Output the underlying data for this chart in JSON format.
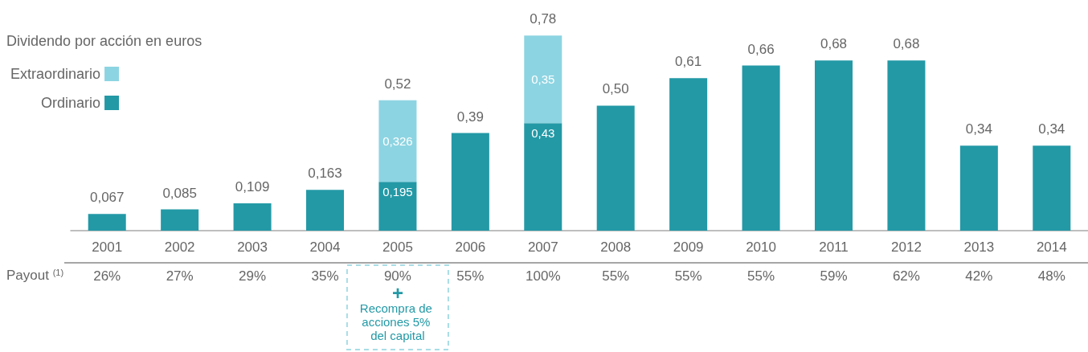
{
  "chart_data": {
    "type": "bar",
    "stacked": true,
    "legend": "top left",
    "legend_title": "Dividendo por acción en euros",
    "tick_labels": "x",
    "categories": [
      "2001",
      "2002",
      "2003",
      "2004",
      "2005",
      "2006",
      "2007",
      "2008",
      "2009",
      "2010",
      "2011",
      "2012",
      "2013",
      "2014"
    ],
    "series": [
      {
        "name": "Ordinario",
        "color": "#2399a6",
        "values": [
          0.067,
          0.085,
          0.109,
          0.163,
          0.195,
          0.39,
          0.43,
          0.5,
          0.61,
          0.66,
          0.68,
          0.68,
          0.34,
          0.34
        ],
        "value_labels": [
          null,
          null,
          null,
          null,
          "0,195",
          null,
          "0,43",
          null,
          null,
          null,
          null,
          null,
          null,
          null
        ]
      },
      {
        "name": "Extraordinario",
        "color": "#8dd4e2",
        "values": [
          null,
          null,
          null,
          null,
          0.326,
          null,
          0.35,
          null,
          null,
          null,
          null,
          null,
          null,
          null
        ],
        "value_labels": [
          null,
          null,
          null,
          null,
          "0,326",
          null,
          "0,35",
          null,
          null,
          null,
          null,
          null,
          null,
          null
        ]
      }
    ],
    "totals": [
      "0,067",
      "0,085",
      "0,109",
      "0,163",
      "0,52",
      "0,39",
      "0,78",
      "0,50",
      "0,61",
      "0,66",
      "0,68",
      "0,68",
      "0,34",
      "0,34"
    ],
    "annotations": [
      "Payout $^{(1)}$",
      "26%",
      "27%",
      "29%",
      "35%",
      "90%",
      "55%",
      "100%",
      "55%",
      "55%",
      "55%",
      "59%",
      "62%",
      "42%",
      "48%",
      "+",
      "Recompra de acciones 5% del capital"
    ]
  }
}
